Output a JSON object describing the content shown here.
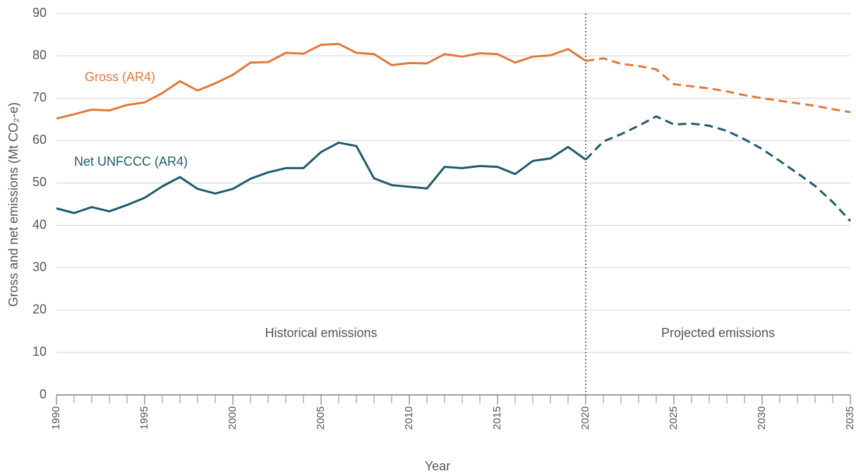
{
  "chart_data": {
    "type": "line",
    "x_label": "Year",
    "y_label": "Gross and net emissions (Mt CO₂-e)",
    "x": [
      1990,
      1991,
      1992,
      1993,
      1994,
      1995,
      1996,
      1997,
      1998,
      1999,
      2000,
      2001,
      2002,
      2003,
      2004,
      2005,
      2006,
      2007,
      2008,
      2009,
      2010,
      2011,
      2012,
      2013,
      2014,
      2015,
      2016,
      2017,
      2018,
      2019,
      2020,
      2021,
      2022,
      2023,
      2024,
      2025,
      2026,
      2027,
      2028,
      2029,
      2030,
      2031,
      2032,
      2033,
      2034,
      2035
    ],
    "series": [
      {
        "name": "Gross (AR4)",
        "color": "#e07a3a",
        "values": [
          65.2,
          66.2,
          67.3,
          67.1,
          68.4,
          69.0,
          71.2,
          74.0,
          71.8,
          73.5,
          75.5,
          78.4,
          78.5,
          80.7,
          80.5,
          82.6,
          82.8,
          80.7,
          80.4,
          77.8,
          78.3,
          78.2,
          80.4,
          79.8,
          80.6,
          80.4,
          78.4,
          79.8,
          80.1,
          81.6,
          78.8,
          79.4,
          78.1,
          77.6,
          76.8,
          73.3,
          72.8,
          72.3,
          71.6,
          70.7,
          70.0,
          69.4,
          68.8,
          68.2,
          67.4,
          66.7
        ]
      },
      {
        "name": "Net UNFCCC (AR4)",
        "color": "#1f5b6e",
        "values": [
          44.0,
          42.9,
          44.3,
          43.3,
          44.8,
          46.5,
          49.2,
          51.4,
          48.6,
          47.5,
          48.6,
          51.0,
          52.5,
          53.5,
          53.5,
          57.3,
          59.5,
          58.7,
          51.1,
          49.5,
          49.1,
          48.7,
          53.8,
          53.5,
          54.0,
          53.8,
          52.1,
          55.2,
          55.8,
          58.5,
          55.5,
          59.8,
          61.5,
          63.5,
          65.7,
          63.8,
          64.0,
          63.5,
          62.3,
          60.3,
          58.0,
          55.2,
          52.3,
          49.3,
          45.5,
          41.0
        ]
      }
    ],
    "projection_start": 2020,
    "annotations": [
      "Historical emissions",
      "Projected emissions"
    ],
    "xlim": [
      1990,
      2035
    ],
    "xticks": [
      1990,
      1995,
      2000,
      2005,
      2010,
      2015,
      2020,
      2025,
      2030,
      2035
    ],
    "ylim": [
      0,
      90
    ],
    "yticks": [
      0,
      10,
      20,
      30,
      40,
      50,
      60,
      70,
      80,
      90
    ],
    "grid": true
  }
}
